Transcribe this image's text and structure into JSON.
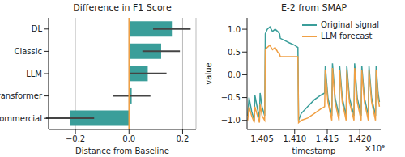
{
  "chart_data": [
    {
      "type": "bar",
      "title": "Difference in F1 Score",
      "orientation": "horizontal",
      "categories": [
        "DL",
        "Classic",
        "LLM",
        "Transformer",
        "Commercial"
      ],
      "values": [
        0.16,
        0.12,
        0.07,
        0.01,
        -0.22
      ],
      "errors": [
        0.07,
        0.07,
        0.07,
        0.07,
        0.09
      ],
      "color": "#3a9e9a",
      "xlabel": "Distance from Baseline",
      "xlim": [
        -0.3,
        0.25
      ],
      "xticks": [
        {
          "value": -0.2,
          "label": "−0.2"
        },
        {
          "value": 0,
          "label": "0.0"
        },
        0.2
      ],
      "grid": true,
      "reference_x": 0
    },
    {
      "type": "line",
      "title": "E-2 from SMAP",
      "xlabel": "timestamp",
      "ylabel": "value",
      "x_offset_text": "×10⁹",
      "x": [
        1.4028,
        1.403,
        1.4034,
        1.4038,
        1.4039,
        1.4043,
        1.4046,
        1.4047,
        1.405,
        1.4054,
        1.4055,
        1.4058,
        1.4062,
        1.4066,
        1.407,
        1.4074,
        1.4077,
        1.4078,
        1.4085,
        1.4092,
        1.41,
        1.4105,
        1.4106,
        1.411,
        1.412,
        1.413,
        1.414,
        1.4146,
        1.4147,
        1.4151,
        1.4157,
        1.4158,
        1.4162,
        1.4168,
        1.4169,
        1.4173,
        1.4179,
        1.418,
        1.4184,
        1.4191,
        1.4192,
        1.4196,
        1.4202,
        1.4203,
        1.4207,
        1.4213,
        1.4214,
        1.4218,
        1.4224,
        1.4225,
        1.4228,
        1.423
      ],
      "series": [
        {
          "name": "Original signal",
          "color": "#3a9e9a",
          "values": [
            -0.9,
            -0.5,
            -0.8,
            -1.0,
            -0.45,
            -0.75,
            -0.95,
            -0.4,
            -0.7,
            -0.9,
            0.9,
            1.0,
            1.05,
            0.95,
            1.0,
            0.95,
            0.9,
            0.8,
            0.75,
            0.7,
            0.65,
            0.6,
            -1.0,
            -0.85,
            -0.7,
            -0.55,
            -0.45,
            -0.4,
            0.2,
            -0.5,
            -0.9,
            0.25,
            -0.5,
            -0.9,
            0.2,
            -0.5,
            -0.9,
            0.2,
            -0.5,
            -0.9,
            0.25,
            -0.5,
            -0.9,
            0.2,
            -0.5,
            -0.9,
            0.2,
            -0.5,
            -0.9,
            0.2,
            -0.4,
            -0.6
          ]
        },
        {
          "name": "LLM forecast",
          "color": "#f0a045",
          "values": [
            -1.0,
            -0.7,
            -0.9,
            -1.05,
            -0.7,
            -0.9,
            -1.05,
            -0.65,
            -0.9,
            -1.0,
            0.55,
            0.6,
            0.65,
            0.55,
            0.6,
            0.5,
            0.45,
            0.4,
            0.4,
            0.4,
            0.4,
            0.4,
            -1.05,
            -1.0,
            -0.95,
            -0.85,
            -0.75,
            -0.7,
            0.1,
            -0.6,
            -1.0,
            0.15,
            -0.6,
            -1.0,
            0.1,
            -0.6,
            -1.0,
            0.1,
            -0.6,
            -1.0,
            0.15,
            -0.6,
            -1.0,
            0.1,
            -0.6,
            -1.0,
            0.1,
            -0.6,
            -1.0,
            0.1,
            -0.5,
            -0.7
          ]
        }
      ],
      "xlim": [
        1.4027,
        1.4232
      ],
      "xticks": [
        1.405,
        {
          "value": 1.41,
          "label": "1.410"
        },
        1.415,
        {
          "value": 1.42,
          "label": "1.420"
        }
      ],
      "ylim": [
        -1.2,
        1.25
      ],
      "yticks": [
        {
          "value": -1,
          "label": "−1.0"
        },
        {
          "value": -0.5,
          "label": "−0.5"
        },
        {
          "value": 0,
          "label": "0.0"
        },
        {
          "value": 0.5,
          "label": "0.5"
        },
        {
          "value": 1,
          "label": "1.0"
        }
      ],
      "legend": "upper right"
    }
  ]
}
